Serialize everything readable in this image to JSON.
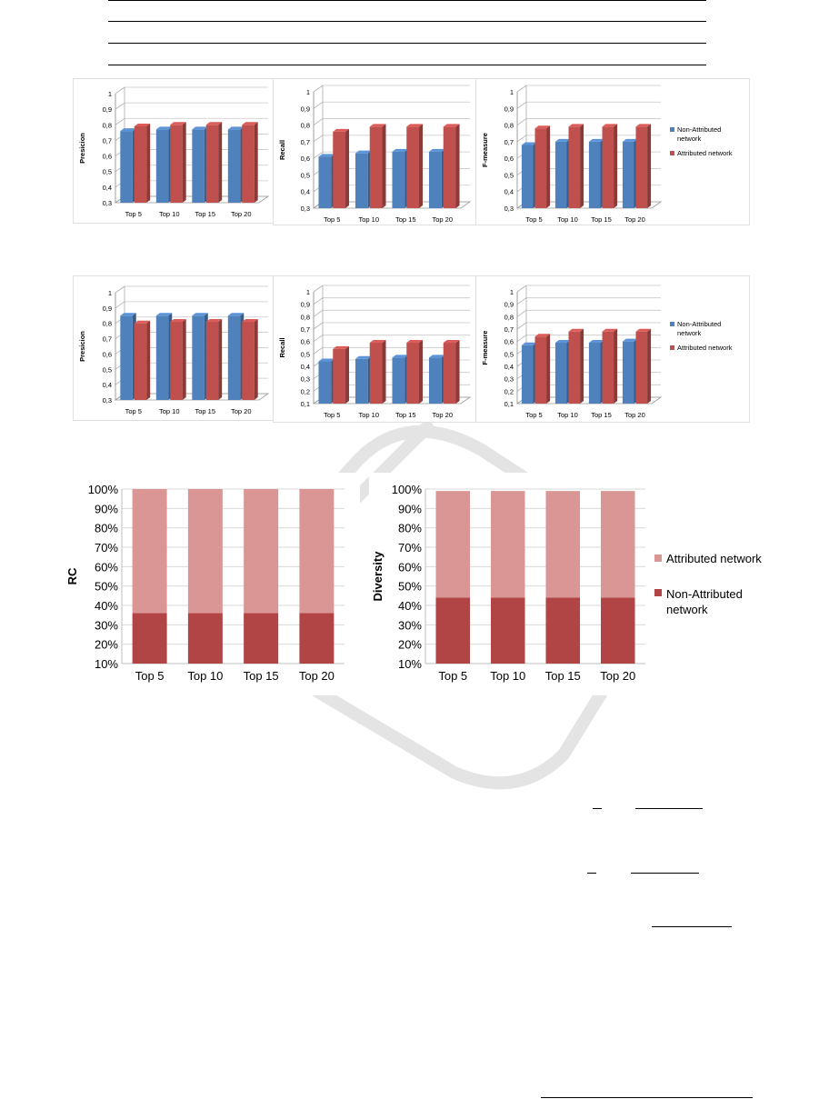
{
  "colors": {
    "blue": "#4f81bd",
    "red": "#c0504d",
    "stack_light": "#d99694",
    "stack_dark": "#b14444",
    "watermark": "#dcdcdc"
  },
  "chart_data": [
    {
      "id": "c1",
      "type": "bar",
      "style": "3d",
      "categories": [
        "Top 5",
        "Top 10",
        "Top 15",
        "Top 20"
      ],
      "ylabel": "Presicion",
      "ylim": [
        0.3,
        1
      ],
      "ytick_step": 0.1,
      "yticks": [
        "0,3",
        "0,4",
        "0,5",
        "0,6",
        "0,7",
        "0,8",
        "0,9",
        "1"
      ],
      "series": [
        {
          "name": "Non-Attributed network",
          "values": [
            0.76,
            0.77,
            0.77,
            0.77
          ]
        },
        {
          "name": "Attributed network",
          "values": [
            0.79,
            0.8,
            0.8,
            0.8
          ]
        }
      ]
    },
    {
      "id": "c2",
      "type": "bar",
      "style": "3d",
      "categories": [
        "Top 5",
        "Top 10",
        "Top 15",
        "Top 20"
      ],
      "ylabel": "Recall",
      "ylim": [
        0.3,
        1
      ],
      "ytick_step": 0.1,
      "yticks": [
        "0,3",
        "0,4",
        "0,5",
        "0,6",
        "0,7",
        "0,8",
        "0,9",
        "1"
      ],
      "series": [
        {
          "name": "Non-Attributed network",
          "values": [
            0.61,
            0.63,
            0.64,
            0.64
          ]
        },
        {
          "name": "Attributed network",
          "values": [
            0.76,
            0.79,
            0.79,
            0.79
          ]
        }
      ]
    },
    {
      "id": "c3",
      "type": "bar",
      "style": "3d",
      "categories": [
        "Top 5",
        "Top 10",
        "Top 15",
        "Top 20"
      ],
      "ylabel": "F-measure",
      "ylim": [
        0.3,
        1
      ],
      "ytick_step": 0.1,
      "yticks": [
        "0,3",
        "0,4",
        "0,5",
        "0,6",
        "0,7",
        "0,8",
        "0,9",
        "1"
      ],
      "legend": "right",
      "legend_entries": [
        "Non-Attributed network",
        "Attributed network"
      ],
      "series": [
        {
          "name": "Non-Attributed network",
          "values": [
            0.68,
            0.7,
            0.7,
            0.7
          ]
        },
        {
          "name": "Attributed network",
          "values": [
            0.78,
            0.79,
            0.79,
            0.79
          ]
        }
      ]
    },
    {
      "id": "c4",
      "type": "bar",
      "style": "3d",
      "categories": [
        "Top 5",
        "Top 10",
        "Top 15",
        "Top 20"
      ],
      "ylabel": "Presicion",
      "ylim": [
        0.3,
        1
      ],
      "ytick_step": 0.1,
      "yticks": [
        "0,3",
        "0,4",
        "0,5",
        "0,6",
        "0,7",
        "0,8",
        "0,9",
        "1"
      ],
      "series": [
        {
          "name": "Non-Attributed network",
          "values": [
            0.85,
            0.85,
            0.85,
            0.85
          ]
        },
        {
          "name": "Attributed network",
          "values": [
            0.8,
            0.81,
            0.81,
            0.81
          ]
        }
      ]
    },
    {
      "id": "c5",
      "type": "bar",
      "style": "3d",
      "categories": [
        "Top 5",
        "Top 10",
        "Top 15",
        "Top 20"
      ],
      "ylabel": "Recall",
      "ylim": [
        0.1,
        1
      ],
      "ytick_step": 0.1,
      "yticks": [
        "0,1",
        "0,2",
        "0,3",
        "0,4",
        "0,5",
        "0,6",
        "0,7",
        "0,8",
        "0,9",
        "1"
      ],
      "series": [
        {
          "name": "Non-Attributed network",
          "values": [
            0.44,
            0.46,
            0.47,
            0.47
          ]
        },
        {
          "name": "Attributed network",
          "values": [
            0.54,
            0.59,
            0.59,
            0.59
          ]
        }
      ]
    },
    {
      "id": "c6",
      "type": "bar",
      "style": "3d",
      "categories": [
        "Top 5",
        "Top 10",
        "Top 15",
        "Top 20"
      ],
      "ylabel": "F-measure",
      "ylim": [
        0.1,
        1
      ],
      "ytick_step": 0.1,
      "yticks": [
        "0,1",
        "0,2",
        "0,3",
        "0,4",
        "0,5",
        "0,6",
        "0,7",
        "0,8",
        "0,9",
        "1"
      ],
      "legend": "right",
      "legend_entries": [
        "Non-Attributed network",
        "Attributed network"
      ],
      "series": [
        {
          "name": "Non-Attributed network",
          "values": [
            0.57,
            0.59,
            0.59,
            0.6
          ]
        },
        {
          "name": "Attributed network",
          "values": [
            0.64,
            0.68,
            0.68,
            0.68
          ]
        }
      ]
    },
    {
      "id": "c7",
      "type": "bar",
      "style": "stacked",
      "categories": [
        "Top 5",
        "Top 10",
        "Top 15",
        "Top 20"
      ],
      "ylabel": "RC",
      "ylim": [
        10,
        100
      ],
      "ytick_step": 10,
      "yticks": [
        "10%",
        "20%",
        "30%",
        "40%",
        "50%",
        "60%",
        "70%",
        "80%",
        "90%",
        "100%"
      ],
      "series": [
        {
          "name": "Non-Attributed network",
          "values": [
            36,
            36,
            36,
            36
          ]
        },
        {
          "name": "Attributed network",
          "values": [
            64,
            64,
            64,
            64
          ]
        }
      ]
    },
    {
      "id": "c8",
      "type": "bar",
      "style": "stacked",
      "categories": [
        "Top 5",
        "Top 10",
        "Top 15",
        "Top 20"
      ],
      "ylabel": "Diversity",
      "ylim": [
        10,
        100
      ],
      "ytick_step": 10,
      "yticks": [
        "10%",
        "20%",
        "30%",
        "40%",
        "50%",
        "60%",
        "70%",
        "80%",
        "90%",
        "100%"
      ],
      "legend": "right",
      "legend_entries": [
        "Attributed network",
        "Non-Attributed network"
      ],
      "series": [
        {
          "name": "Non-Attributed network",
          "values": [
            44,
            44,
            44,
            44
          ]
        },
        {
          "name": "Attributed network",
          "values": [
            55,
            55,
            55,
            55
          ]
        }
      ]
    }
  ]
}
